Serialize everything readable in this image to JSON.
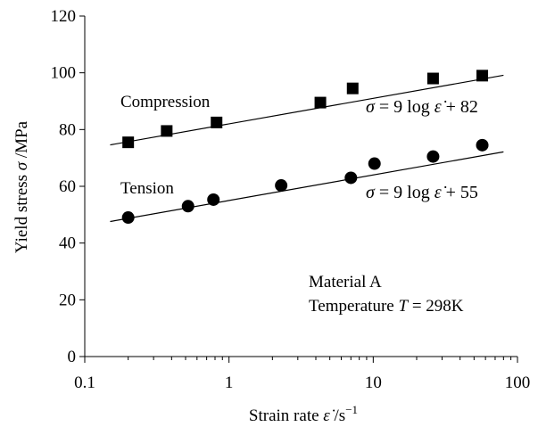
{
  "chart_data": {
    "type": "scatter",
    "xscale": "log",
    "xlim": [
      0.1,
      100
    ],
    "ylim": [
      0,
      120
    ],
    "xticks": [
      {
        "value": 0.1,
        "label": "0.1"
      },
      {
        "value": 1,
        "label": "1"
      },
      {
        "value": 10,
        "label": "10"
      },
      {
        "value": 100,
        "label": "100"
      }
    ],
    "yticks": [
      {
        "value": 0,
        "label": "0"
      },
      {
        "value": 20,
        "label": "20"
      },
      {
        "value": 40,
        "label": "40"
      },
      {
        "value": 60,
        "label": "60"
      },
      {
        "value": 80,
        "label": "80"
      },
      {
        "value": 100,
        "label": "100"
      },
      {
        "value": 120,
        "label": "120"
      }
    ],
    "xlabel": {
      "text": "Strain rate ",
      "var": "ε̇",
      "unit": " /s",
      "sup": "−1"
    },
    "ylabel": {
      "text": "Yield stress ",
      "var": "σ",
      "unit": " /MPa"
    },
    "grid": false,
    "series": [
      {
        "name": "Compression",
        "marker": "square",
        "x": [
          0.2,
          0.37,
          0.82,
          4.3,
          7.2,
          26,
          57
        ],
        "y": [
          75.5,
          79.5,
          82.5,
          89.5,
          94.5,
          98,
          99
        ],
        "fit": {
          "a": 9,
          "b": 82,
          "x_range": [
            0.15,
            80
          ]
        },
        "equation": {
          "lhs": "σ",
          "eq": " = 9 log ",
          "var": "ε̇",
          "rest": " + 82"
        }
      },
      {
        "name": "Tension",
        "marker": "circle",
        "x": [
          0.2,
          0.52,
          0.78,
          2.3,
          7.0,
          10.2,
          26,
          57
        ],
        "y": [
          49,
          53,
          55.3,
          60.3,
          63,
          68,
          70.5,
          74.5
        ],
        "fit": {
          "a": 9,
          "b": 55,
          "x_range": [
            0.15,
            80
          ]
        },
        "equation": {
          "lhs": "σ",
          "eq": " = 9 log ",
          "var": "ε̇",
          "rest": " + 55"
        }
      }
    ],
    "annotations": {
      "material": "Material A",
      "temperature": {
        "text": "Temperature ",
        "var": "T",
        "rest": " = 298K"
      }
    }
  }
}
